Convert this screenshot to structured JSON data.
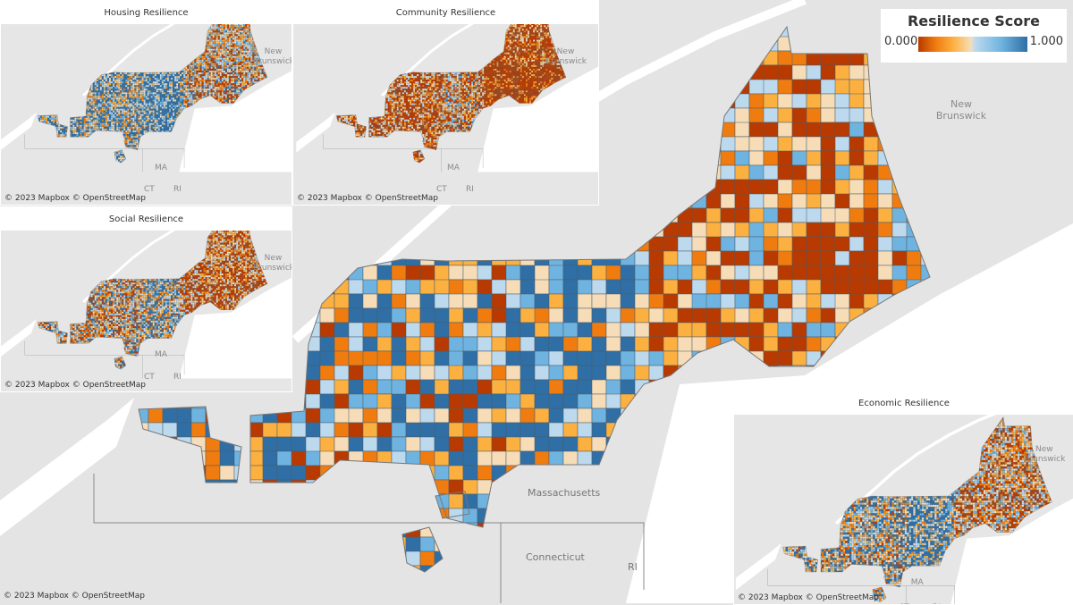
{
  "main_map": {
    "labels": {
      "massachusetts": "Massachusetts",
      "connecticut": "Connecticut",
      "ri": "RI",
      "new_brunswick": "New Brunswick"
    },
    "attribution": "© 2023 Mapbox © OpenStreetMap"
  },
  "legend": {
    "title": "Resilience Score",
    "min_label": "0.000",
    "max_label": "1.000",
    "colors": [
      "#b83a00",
      "#f07c10",
      "#fcb040",
      "#f6ddb8",
      "#bcd9ee",
      "#6fb4e0",
      "#2f6fa5"
    ]
  },
  "insets": [
    {
      "title": "Housing Resilience",
      "bias": 0.7,
      "labels": {
        "nb": "New Brunswick",
        "ma": "MA",
        "ct": "CT",
        "ri": "RI"
      },
      "attribution": "© 2023 Mapbox © OpenStreetMap"
    },
    {
      "title": "Community Resilience",
      "bias": 0.15,
      "labels": {
        "nb": "New Brunswick",
        "ma": "MA",
        "ct": "CT",
        "ri": "RI"
      },
      "attribution": "© 2023 Mapbox © OpenStreetMap"
    },
    {
      "title": "Social Resilience",
      "bias": 0.45,
      "labels": {
        "nb": "New Brunswick",
        "ma": "MA",
        "ct": "CT",
        "ri": "RI"
      },
      "attribution": "© 2023 Mapbox © OpenStreetMap"
    },
    {
      "title": "Economic Resilience",
      "bias": 0.6,
      "labels": {
        "nb": "New Brunswick",
        "ma": "MA",
        "ct": "CT",
        "ri": "RI"
      },
      "attribution": "© 2023 Mapbox © OpenStreetMap"
    }
  ]
}
